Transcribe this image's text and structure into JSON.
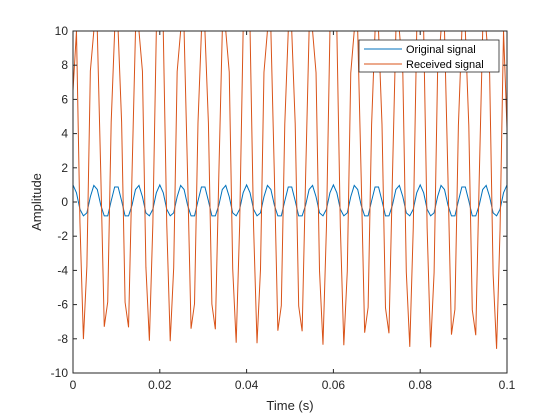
{
  "chart_data": {
    "type": "line",
    "xlabel": "Time (s)",
    "ylabel": "Amplitude",
    "xlim": [
      0,
      0.1
    ],
    "ylim": [
      -10,
      10
    ],
    "xticks": [
      0,
      0.02,
      0.04,
      0.06,
      0.08,
      0.1
    ],
    "xtick_labels": [
      "0",
      "0.02",
      "0.04",
      "0.06",
      "0.08",
      "0.1"
    ],
    "yticks": [
      -10,
      -8,
      -6,
      -4,
      -2,
      0,
      2,
      4,
      6,
      8,
      10
    ],
    "ytick_labels": [
      "-10",
      "-8",
      "-6",
      "-4",
      "-2",
      "0",
      "2",
      "4",
      "6",
      "8",
      "10"
    ],
    "grid": false,
    "legend_position": "top-right",
    "sample_interval": 0.0008,
    "series": [
      {
        "name": "Original signal",
        "color": "#0072BD",
        "frequency_hz": 200,
        "amplitude": 1,
        "peak_at_start": true,
        "y_min_observed": -0.81
      },
      {
        "name": "Received signal",
        "color": "#D95319",
        "frequency_hz": 200,
        "y_max_observed": 10,
        "y_min_start": -8.1,
        "y_min_end": -8.7,
        "y_start": 6.5,
        "y_end": 4.3,
        "clipped_at_top": true
      }
    ]
  }
}
